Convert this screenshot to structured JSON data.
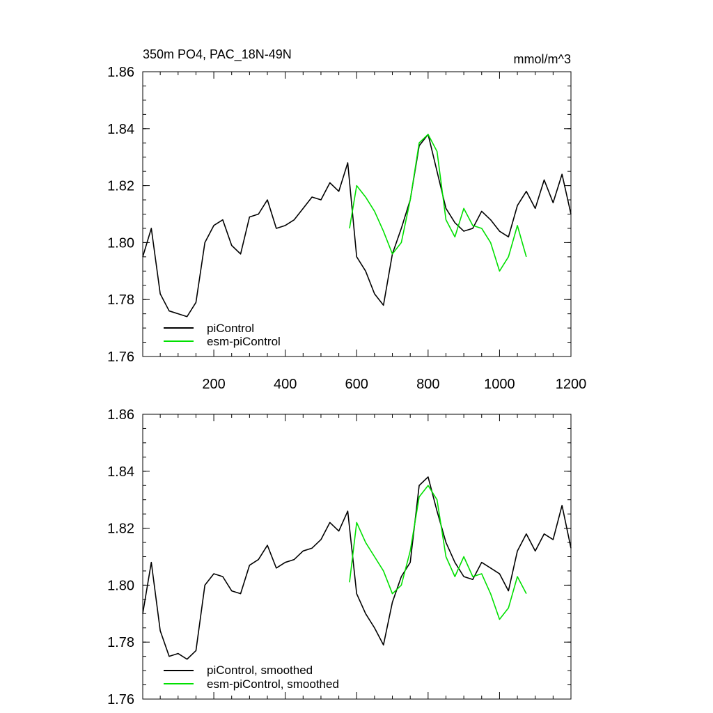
{
  "chart_data": [
    {
      "type": "line",
      "title": "350m PO4, PAC_18N-49N",
      "units": "mmol/m^3",
      "xlim": [
        1,
        1200
      ],
      "ylim": [
        1.76,
        1.86
      ],
      "x_ticks": [
        200,
        400,
        600,
        800,
        1000,
        1200
      ],
      "y_ticks": [
        1.76,
        1.78,
        1.8,
        1.82,
        1.84,
        1.86
      ],
      "x_tick_labels": [
        "200",
        "400",
        "600",
        "800",
        "1000",
        "1200"
      ],
      "y_tick_labels": [
        "1.76",
        "1.78",
        "1.80",
        "1.82",
        "1.84",
        "1.86"
      ],
      "legend_position": "bottom-left",
      "grid": false,
      "series": [
        {
          "name": "piControl",
          "color": "#000000",
          "x": [
            1,
            25,
            50,
            75,
            100,
            125,
            150,
            175,
            200,
            225,
            250,
            275,
            300,
            325,
            350,
            375,
            400,
            425,
            450,
            475,
            500,
            525,
            550,
            575,
            600,
            625,
            650,
            675,
            700,
            725,
            750,
            775,
            800,
            825,
            850,
            875,
            900,
            925,
            950,
            975,
            1000,
            1025,
            1050,
            1075,
            1100,
            1125,
            1150,
            1175,
            1200
          ],
          "values": [
            1.795,
            1.805,
            1.782,
            1.776,
            1.775,
            1.774,
            1.779,
            1.8,
            1.806,
            1.808,
            1.799,
            1.796,
            1.809,
            1.81,
            1.815,
            1.805,
            1.806,
            1.808,
            1.812,
            1.816,
            1.815,
            1.821,
            1.818,
            1.828,
            1.795,
            1.79,
            1.782,
            1.778,
            1.796,
            1.805,
            1.815,
            1.834,
            1.838,
            1.825,
            1.812,
            1.807,
            1.804,
            1.805,
            1.811,
            1.808,
            1.804,
            1.802,
            1.813,
            1.818,
            1.812,
            1.822,
            1.814,
            1.824,
            1.81
          ]
        },
        {
          "name": "esm-piControl",
          "color": "#00e000",
          "x": [
            580,
            600,
            625,
            650,
            675,
            700,
            725,
            750,
            775,
            800,
            825,
            850,
            875,
            900,
            925,
            950,
            975,
            1000,
            1025,
            1050,
            1075
          ],
          "values": [
            1.805,
            1.82,
            1.816,
            1.811,
            1.804,
            1.796,
            1.8,
            1.815,
            1.835,
            1.838,
            1.832,
            1.808,
            1.802,
            1.812,
            1.806,
            1.805,
            1.8,
            1.79,
            1.795,
            1.806,
            1.795
          ]
        }
      ]
    },
    {
      "type": "line",
      "title": "",
      "xlim": [
        1,
        1200
      ],
      "ylim": [
        1.76,
        1.86
      ],
      "x_ticks": [
        200,
        400,
        600,
        800,
        1000,
        1200
      ],
      "y_ticks": [
        1.76,
        1.78,
        1.8,
        1.82,
        1.84,
        1.86
      ],
      "y_tick_labels": [
        "1.76",
        "1.78",
        "1.80",
        "1.82",
        "1.84",
        "1.86"
      ],
      "legend_position": "bottom-left",
      "grid": false,
      "series": [
        {
          "name": "piControl, smoothed",
          "color": "#000000",
          "x": [
            1,
            25,
            50,
            75,
            100,
            125,
            150,
            175,
            200,
            225,
            250,
            275,
            300,
            325,
            350,
            375,
            400,
            425,
            450,
            475,
            500,
            525,
            550,
            575,
            600,
            625,
            650,
            675,
            700,
            725,
            750,
            775,
            800,
            825,
            850,
            875,
            900,
            925,
            950,
            975,
            1000,
            1025,
            1050,
            1075,
            1100,
            1125,
            1150,
            1175,
            1200
          ],
          "values": [
            1.79,
            1.808,
            1.784,
            1.775,
            1.776,
            1.774,
            1.777,
            1.8,
            1.804,
            1.803,
            1.798,
            1.797,
            1.807,
            1.809,
            1.814,
            1.806,
            1.808,
            1.809,
            1.812,
            1.813,
            1.816,
            1.822,
            1.819,
            1.826,
            1.797,
            1.79,
            1.785,
            1.779,
            1.794,
            1.803,
            1.808,
            1.835,
            1.838,
            1.826,
            1.815,
            1.808,
            1.803,
            1.802,
            1.808,
            1.806,
            1.804,
            1.798,
            1.812,
            1.818,
            1.812,
            1.818,
            1.816,
            1.828,
            1.813
          ]
        },
        {
          "name": "esm-piControl, smoothed",
          "color": "#00e000",
          "x": [
            580,
            600,
            625,
            650,
            675,
            700,
            725,
            750,
            775,
            800,
            825,
            850,
            875,
            900,
            925,
            950,
            975,
            1000,
            1025,
            1050,
            1075
          ],
          "values": [
            1.801,
            1.822,
            1.815,
            1.81,
            1.805,
            1.797,
            1.8,
            1.812,
            1.831,
            1.835,
            1.83,
            1.81,
            1.803,
            1.81,
            1.803,
            1.804,
            1.797,
            1.788,
            1.792,
            1.803,
            1.797
          ]
        }
      ]
    }
  ]
}
